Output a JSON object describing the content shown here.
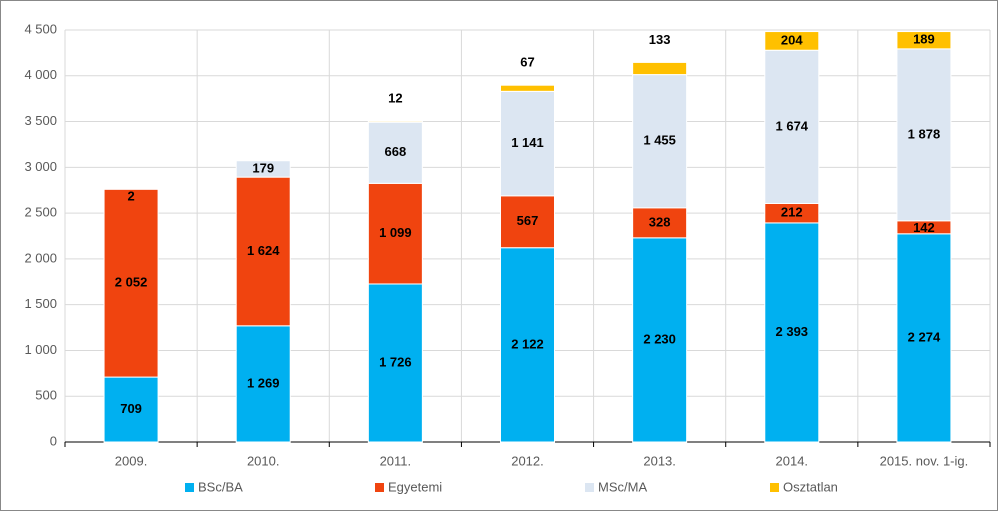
{
  "chart_data": {
    "type": "stacked_bar",
    "categories": [
      "2009.",
      "2010.",
      "2011.",
      "2012.",
      "2013.",
      "2014.",
      "2015. nov. 1-ig."
    ],
    "series": [
      {
        "name": "BSc/BA",
        "color": "#00b0f0",
        "values": [
          709,
          1269,
          1726,
          2122,
          2230,
          2393,
          2274
        ],
        "value_labels": [
          "709",
          "1 269",
          "1 726",
          "2 122",
          "2 230",
          "2 393",
          "2 274"
        ]
      },
      {
        "name": "Egyetemi",
        "color": "#f0440f",
        "values": [
          2052,
          1624,
          1099,
          567,
          328,
          212,
          142
        ],
        "value_labels": [
          "2 052",
          "1 624",
          "1 099",
          "567",
          "328",
          "212",
          "142"
        ]
      },
      {
        "name": "MSc/MA",
        "color": "#dce6f2",
        "values": [
          2,
          179,
          668,
          1141,
          1455,
          1674,
          1878
        ],
        "value_labels": [
          "2",
          "179",
          "668",
          "1 141",
          "1 455",
          "1 674",
          "1 878"
        ]
      },
      {
        "name": "Osztatlan",
        "color": "#ffc000",
        "values": [
          null,
          null,
          12,
          67,
          133,
          204,
          189
        ],
        "value_labels": [
          null,
          null,
          "12",
          "67",
          "133",
          "204",
          "189"
        ]
      }
    ],
    "ylim": [
      0,
      4500
    ],
    "yticks": [
      0,
      500,
      {
        "value": 1000,
        "label": "1 000"
      },
      {
        "value": 1500,
        "label": "1 500"
      },
      {
        "value": 2000,
        "label": "2 000"
      },
      {
        "value": 2500,
        "label": "2 500"
      },
      {
        "value": 3000,
        "label": "3 000"
      },
      {
        "value": 3500,
        "label": "3 500"
      },
      {
        "value": 4000,
        "label": "4 000"
      },
      {
        "value": 4500,
        "label": "4 500"
      }
    ],
    "grid": true,
    "legend": "bottom"
  }
}
